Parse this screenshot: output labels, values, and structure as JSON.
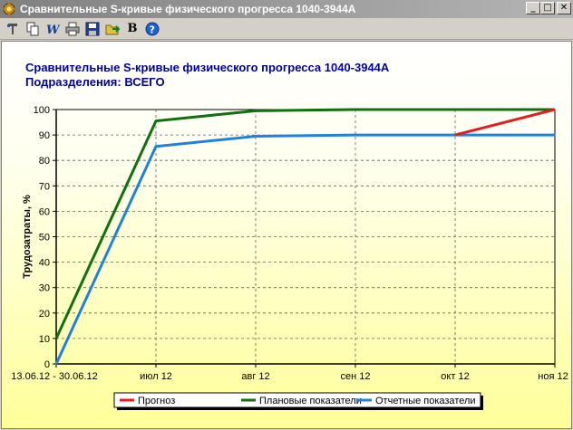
{
  "window": {
    "title": "Сравнительные S-кривые физического прогресса 1040-3944A",
    "minimize_glyph": "_",
    "maximize_glyph": "□",
    "close_glyph": "✕"
  },
  "toolbar": {
    "buttons": [
      {
        "name": "tools-icon"
      },
      {
        "name": "copy-icon"
      },
      {
        "name": "word-icon"
      },
      {
        "name": "print-icon"
      },
      {
        "name": "save-icon"
      },
      {
        "name": "export-icon"
      },
      {
        "name": "bold-b-icon",
        "label": "B"
      },
      {
        "name": "help-icon"
      }
    ]
  },
  "chart_data": {
    "type": "line",
    "title": "Сравнительные S-кривые физического прогресса 1040-3944A",
    "subtitle": "Подразделения: ВСЕГО",
    "xlabel": "",
    "ylabel": "Трудозатраты, %",
    "categories": [
      "13.06.12 - 30.06.12",
      "июл 12",
      "авг 12",
      "сен 12",
      "окт 12",
      "ноя 12"
    ],
    "ylim": [
      0,
      100
    ],
    "yticks": [
      0,
      10,
      20,
      30,
      40,
      50,
      60,
      70,
      80,
      90,
      100
    ],
    "grid": true,
    "legend_position": "bottom",
    "series": [
      {
        "name": "Прогноз",
        "color": "#e02020",
        "x": [
          4,
          5
        ],
        "values": [
          90,
          100
        ]
      },
      {
        "name": "Плановые показатели",
        "color": "#107010",
        "x": [
          0,
          1,
          2,
          3,
          4,
          5
        ],
        "values": [
          10,
          95.5,
          99.5,
          100,
          100,
          100
        ]
      },
      {
        "name": "Отчетные показатели",
        "color": "#2080e0",
        "x": [
          0,
          1,
          2,
          3,
          4,
          5
        ],
        "values": [
          0,
          85.5,
          89.5,
          90,
          90,
          90
        ]
      }
    ],
    "colors": {
      "title": "#0000a0",
      "axis": "#000000",
      "grid": "#606060"
    }
  }
}
